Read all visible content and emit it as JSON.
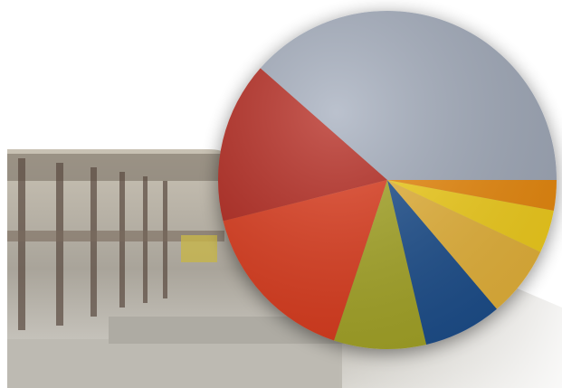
{
  "chart_data": {
    "type": "pie",
    "values": [
      38.5,
      15.4,
      16,
      8.8,
      7.5,
      6.8,
      4.1,
      2.9
    ],
    "colors": [
      "#a4adbd",
      "#b5261a",
      "#e03a1c",
      "#a8a828",
      "#1f4f8e",
      "#ebb73a",
      "#f7d21c",
      "#ee8c0c"
    ]
  }
}
